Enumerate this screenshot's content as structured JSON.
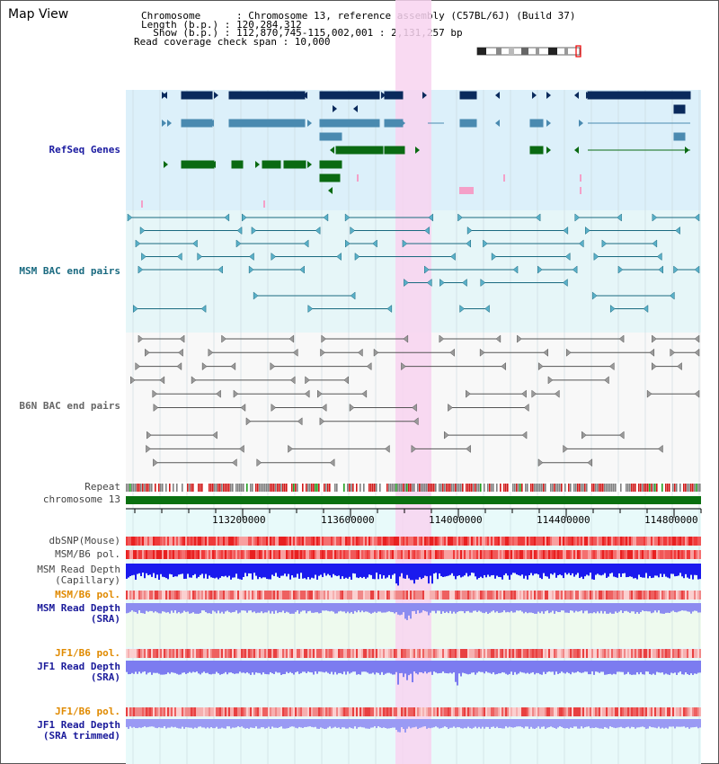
{
  "title": "Map View",
  "info": {
    "chromosome": "Chromosome      : Chromosome 13, reference assembly (C57BL/6J) (Build 37)",
    "length": "Length (b.p.) : 120,284,312",
    "show": "  Show (b.p.) : 112,870,745-115,002,001 : 2,131,257 bp",
    "coverage": "Read coverage check span : 10,000"
  },
  "tracks": {
    "refseq": "RefSeq Genes",
    "msm_bac": "MSM BAC end pairs",
    "b6n_bac": "B6N BAC end pairs",
    "repeat": "Repeat",
    "chromosome": "chromosome 13",
    "dbsnp": "dbSNP(Mouse)",
    "msm_b6_pol": "MSM/B6 pol.",
    "msm_read_depth_cap_1": "MSM Read Depth",
    "msm_read_depth_cap_2": "(Capillary)",
    "msm_b6_pol_sra": "MSM/B6 pol.",
    "msm_read_depth_sra_1": "MSM Read Depth",
    "msm_read_depth_sra_2": "(SRA)",
    "jf1_b6_pol": "JF1/B6 pol.",
    "jf1_read_depth_1": "JF1 Read Depth",
    "jf1_read_depth_2": "(SRA)",
    "jf1_b6_pol_2": "JF1/B6 pol.",
    "jf1_read_depth_trim_1": "JF1 Read Depth",
    "jf1_read_depth_trim_2": "(SRA trimmed)"
  },
  "ruler": {
    "ticks": [
      "113200000",
      "113600000",
      "114000000",
      "114400000",
      "114800000"
    ]
  },
  "colors": {
    "refseq_bg": "#dcf0fa",
    "msm_bg": "#e6f6f8",
    "b6n_bg": "#f8f8f8",
    "highlight": "#f8d4f0",
    "navy": "#0a2a5c",
    "steel": "#4a8ab0",
    "green": "#0a6a12",
    "teal": "#1a6a80",
    "gray": "#555555",
    "blue_depth": "#1a1aee",
    "lavender_depth": "#8c8cf0",
    "orange_label": "#e08a00",
    "navy_label": "#1a1a9a"
  }
}
